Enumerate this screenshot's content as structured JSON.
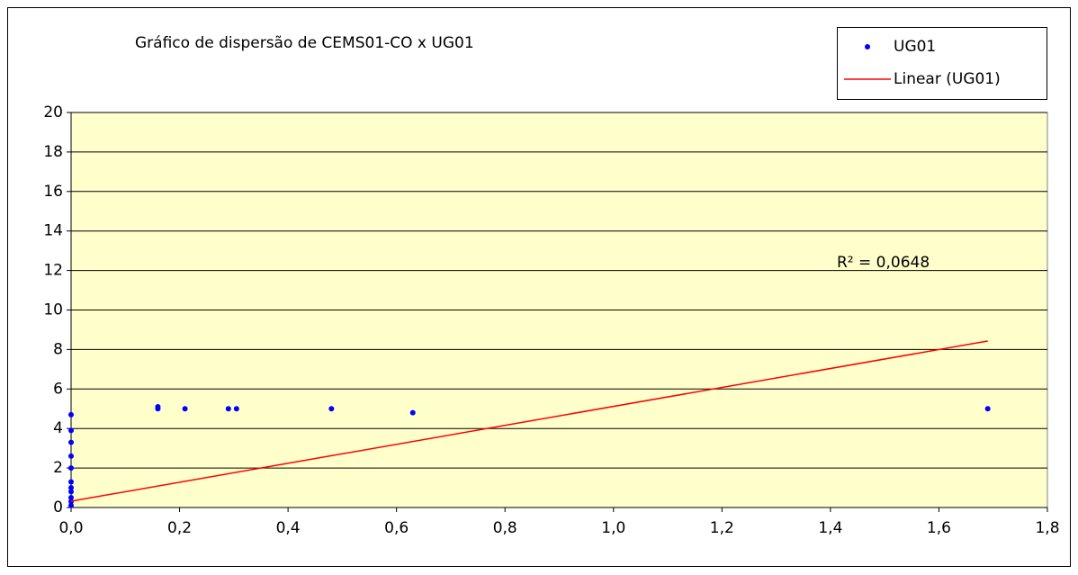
{
  "chart_data": {
    "type": "scatter",
    "title": "Gráfico de dispersão de CEMS01-CO x UG01",
    "annotation": "R² = 0,0648",
    "series": [
      {
        "name": "UG01",
        "color": "#0000ff",
        "mode": "markers",
        "x": [
          0,
          0,
          0,
          0,
          0,
          0,
          0,
          0,
          0,
          0,
          0,
          0.16,
          0.16,
          0.21,
          0.29,
          0.305,
          0.48,
          0.63,
          1.69
        ],
        "values": [
          4.7,
          3.9,
          3.3,
          2.6,
          2.0,
          1.3,
          1.0,
          0.8,
          0.5,
          0.3,
          0.1,
          5.1,
          5.0,
          5.0,
          5.0,
          5.0,
          5.0,
          4.8,
          5.0
        ]
      },
      {
        "name": "Linear (UG01)",
        "color": "#ff0000",
        "mode": "line",
        "x": [
          0,
          1.69
        ],
        "values": [
          0.32,
          8.43
        ]
      }
    ],
    "xlim": [
      0,
      1.8
    ],
    "xticks": [
      {
        "value": 0,
        "label": "0,0"
      },
      {
        "value": 0.2,
        "label": "0,2"
      },
      {
        "value": 0.4,
        "label": "0,4"
      },
      {
        "value": 0.6,
        "label": "0,6"
      },
      {
        "value": 0.8,
        "label": "0,8"
      },
      {
        "value": 1.0,
        "label": "1,0"
      },
      {
        "value": 1.2,
        "label": "1,2"
      },
      {
        "value": 1.4,
        "label": "1,4"
      },
      {
        "value": 1.6,
        "label": "1,6"
      },
      {
        "value": 1.8,
        "label": "1,8"
      }
    ],
    "ylim": [
      0,
      20
    ],
    "yticks": [
      0,
      2,
      4,
      6,
      8,
      10,
      12,
      14,
      16,
      18,
      20
    ],
    "grid": true,
    "plot_background": "#ffffcc",
    "legend": "top-right"
  }
}
